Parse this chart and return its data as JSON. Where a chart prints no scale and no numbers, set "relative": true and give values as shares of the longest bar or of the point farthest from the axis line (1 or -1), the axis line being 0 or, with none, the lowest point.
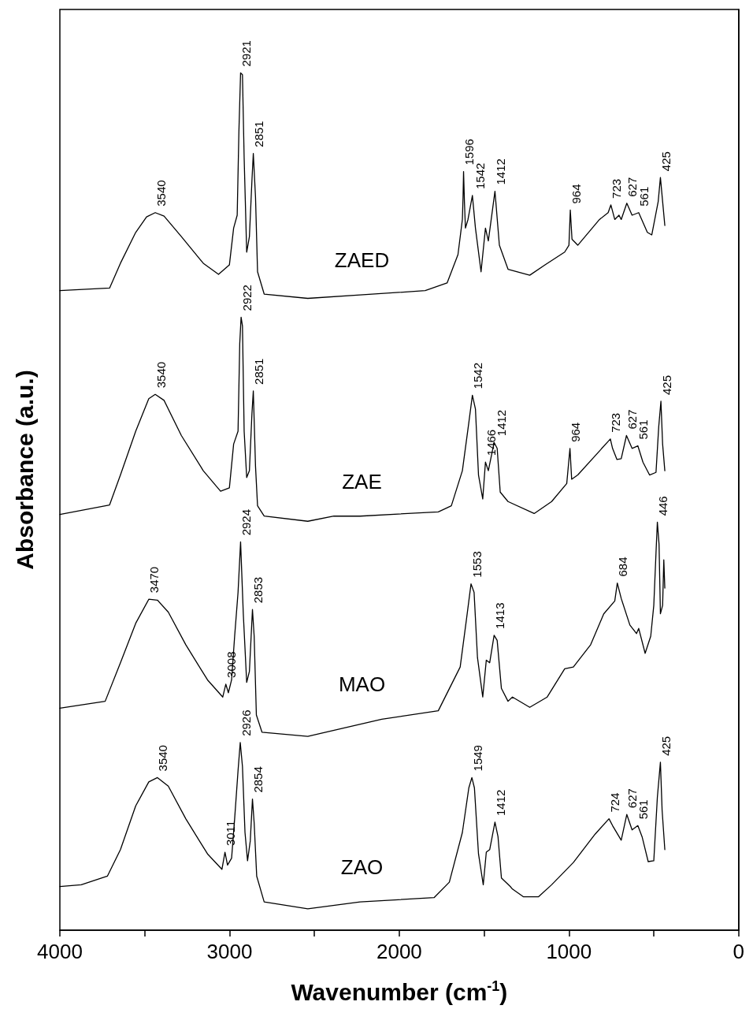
{
  "chart_data": {
    "type": "line",
    "relative": true,
    "xlabel": "Wavenumber (cm$^{-1}$)",
    "ylabel": "Absorbance (a.u.)",
    "xlim": [
      4000,
      0
    ],
    "xticks": [
      4000,
      {
        "value": 3500,
        "label": null
      },
      3000,
      {
        "value": 2500,
        "label": null
      },
      2000,
      {
        "value": 1500,
        "label": null
      },
      1000,
      {
        "value": 500,
        "label": null
      },
      0
    ],
    "tick_labels": "x",
    "legend": false,
    "grid": false,
    "marker": "none",
    "line_style": "solid",
    "series": [
      {
        "name": "ZAED",
        "color": "#000000",
        "x": [
          4000,
          3707,
          3643,
          3553,
          3489,
          3438,
          3386,
          3284,
          3155,
          3065,
          3001,
          2976,
          2955,
          2945,
          2935,
          2924,
          2914,
          2899,
          2883,
          2868,
          2860,
          2847,
          2835,
          2796,
          2539,
          2231,
          1847,
          1718,
          1654,
          1628,
          1624,
          1621,
          1616,
          1610,
          1595,
          1569,
          1551,
          1518,
          1492,
          1475,
          1436,
          1410,
          1359,
          1231,
          1141,
          1025,
          1000,
          992,
          982,
          948,
          820,
          769,
          753,
          730,
          705,
          692,
          659,
          628,
          589,
          538,
          512,
          474,
          461,
          448,
          435
        ],
        "values": [
          0.746,
          0.749,
          0.778,
          0.814,
          0.832,
          0.837,
          0.833,
          0.809,
          0.778,
          0.765,
          0.776,
          0.819,
          0.834,
          0.931,
          1.0,
          0.998,
          0.901,
          0.791,
          0.809,
          0.875,
          0.906,
          0.855,
          0.768,
          0.742,
          0.737,
          0.741,
          0.746,
          0.755,
          0.788,
          0.829,
          0.855,
          0.885,
          0.85,
          0.819,
          0.829,
          0.857,
          0.819,
          0.768,
          0.819,
          0.804,
          0.862,
          0.799,
          0.771,
          0.764,
          0.776,
          0.791,
          0.799,
          0.84,
          0.806,
          0.799,
          0.829,
          0.837,
          0.846,
          0.829,
          0.834,
          0.829,
          0.848,
          0.834,
          0.837,
          0.814,
          0.811,
          0.85,
          0.878,
          0.85,
          0.822
        ]
      },
      {
        "name": "ZAE",
        "color": "#000000",
        "x": [
          4000,
          3707,
          3643,
          3553,
          3476,
          3438,
          3386,
          3284,
          3155,
          3053,
          3001,
          2976,
          2950,
          2940,
          2932,
          2924,
          2914,
          2899,
          2883,
          2868,
          2860,
          2847,
          2835,
          2796,
          2539,
          2385,
          2231,
          1770,
          1693,
          1628,
          1590,
          1569,
          1551,
          1533,
          1508,
          1492,
          1475,
          1441,
          1423,
          1405,
          1359,
          1205,
          1102,
          1013,
          994,
          984,
          948,
          820,
          756,
          743,
          717,
          692,
          661,
          628,
          594,
          564,
          525,
          487,
          471,
          458,
          448,
          435
        ],
        "values": [
          0.485,
          0.496,
          0.531,
          0.582,
          0.62,
          0.625,
          0.618,
          0.577,
          0.536,
          0.512,
          0.516,
          0.567,
          0.582,
          0.684,
          0.715,
          0.705,
          0.582,
          0.528,
          0.536,
          0.603,
          0.629,
          0.541,
          0.495,
          0.483,
          0.477,
          0.483,
          0.483,
          0.488,
          0.495,
          0.536,
          0.592,
          0.624,
          0.608,
          0.531,
          0.503,
          0.546,
          0.536,
          0.569,
          0.562,
          0.511,
          0.5,
          0.486,
          0.5,
          0.521,
          0.562,
          0.526,
          0.531,
          0.559,
          0.573,
          0.562,
          0.549,
          0.55,
          0.577,
          0.562,
          0.565,
          0.546,
          0.531,
          0.534,
          0.587,
          0.617,
          0.567,
          0.536
        ]
      },
      {
        "name": "MAO",
        "color": "#000000",
        "x": [
          4000,
          3733,
          3643,
          3553,
          3476,
          3425,
          3361,
          3258,
          3130,
          3040,
          3022,
          3007,
          2988,
          2970,
          2950,
          2935,
          2919,
          2899,
          2883,
          2865,
          2855,
          2842,
          2809,
          2539,
          2103,
          1770,
          1641,
          1603,
          1577,
          1559,
          1539,
          1508,
          1487,
          1467,
          1441,
          1423,
          1398,
          1359,
          1333,
          1231,
          1128,
          1025,
          974,
          872,
          795,
          730,
          715,
          692,
          641,
          602,
          589,
          551,
          518,
          500,
          487,
          479,
          469,
          461,
          448,
          441,
          435
        ],
        "values": [
          0.259,
          0.267,
          0.312,
          0.358,
          0.386,
          0.385,
          0.371,
          0.333,
          0.292,
          0.272,
          0.287,
          0.277,
          0.292,
          0.343,
          0.394,
          0.453,
          0.369,
          0.289,
          0.302,
          0.374,
          0.343,
          0.251,
          0.231,
          0.226,
          0.246,
          0.256,
          0.307,
          0.364,
          0.404,
          0.394,
          0.318,
          0.272,
          0.315,
          0.312,
          0.344,
          0.338,
          0.282,
          0.267,
          0.272,
          0.26,
          0.272,
          0.305,
          0.307,
          0.333,
          0.369,
          0.384,
          0.405,
          0.387,
          0.356,
          0.346,
          0.352,
          0.323,
          0.343,
          0.379,
          0.44,
          0.476,
          0.45,
          0.369,
          0.379,
          0.432,
          0.399
        ]
      },
      {
        "name": "ZAO",
        "color": "#000000",
        "x": [
          4000,
          3874,
          3720,
          3643,
          3553,
          3476,
          3425,
          3361,
          3258,
          3130,
          3045,
          3027,
          3012,
          2988,
          2970,
          2950,
          2937,
          2924,
          2909,
          2894,
          2878,
          2865,
          2855,
          2840,
          2796,
          2539,
          2231,
          1795,
          1705,
          1628,
          1590,
          1572,
          1557,
          1533,
          1505,
          1487,
          1467,
          1436,
          1418,
          1398,
          1346,
          1333,
          1269,
          1179,
          1102,
          974,
          846,
          764,
          743,
          692,
          659,
          628,
          594,
          569,
          533,
          500,
          479,
          461,
          451,
          435
        ],
        "values": [
          0.051,
          0.053,
          0.063,
          0.094,
          0.145,
          0.173,
          0.178,
          0.168,
          0.13,
          0.089,
          0.071,
          0.091,
          0.076,
          0.084,
          0.13,
          0.186,
          0.219,
          0.191,
          0.114,
          0.081,
          0.104,
          0.153,
          0.125,
          0.063,
          0.033,
          0.025,
          0.033,
          0.038,
          0.056,
          0.114,
          0.166,
          0.178,
          0.166,
          0.089,
          0.053,
          0.091,
          0.094,
          0.126,
          0.109,
          0.061,
          0.051,
          0.048,
          0.039,
          0.039,
          0.053,
          0.079,
          0.112,
          0.13,
          0.122,
          0.105,
          0.135,
          0.117,
          0.122,
          0.109,
          0.08,
          0.081,
          0.155,
          0.196,
          0.14,
          0.094
        ]
      }
    ],
    "annotations": [
      {
        "text": "3540",
        "x": 3438,
        "y": 0.837
      },
      {
        "text": "2921",
        "x": 2935,
        "y": 1.0
      },
      {
        "text": "2851",
        "x": 2860,
        "y": 0.906
      },
      {
        "text": "1596",
        "x": 1621,
        "y": 0.885
      },
      {
        "text": "1542",
        "x": 1569,
        "y": 0.857
      },
      {
        "text": "1412",
        "x": 1436,
        "y": 0.862
      },
      {
        "text": "964",
        "x": 992,
        "y": 0.84
      },
      {
        "text": "723",
        "x": 753,
        "y": 0.846
      },
      {
        "text": "627",
        "x": 659,
        "y": 0.848
      },
      {
        "text": "561",
        "x": 589,
        "y": 0.837
      },
      {
        "text": "425",
        "x": 461,
        "y": 0.878
      },
      {
        "text": "3540",
        "x": 3438,
        "y": 0.625
      },
      {
        "text": "2922",
        "x": 2932,
        "y": 0.715
      },
      {
        "text": "2851",
        "x": 2860,
        "y": 0.629
      },
      {
        "text": "1542",
        "x": 1569,
        "y": 0.624
      },
      {
        "text": "1466",
        "x": 1492,
        "y": 0.546
      },
      {
        "text": "1412",
        "x": 1441,
        "y": 0.569
      },
      {
        "text": "964",
        "x": 994,
        "y": 0.562
      },
      {
        "text": "723",
        "x": 756,
        "y": 0.573
      },
      {
        "text": "627",
        "x": 661,
        "y": 0.577
      },
      {
        "text": "561",
        "x": 594,
        "y": 0.565
      },
      {
        "text": "425",
        "x": 458,
        "y": 0.617
      },
      {
        "text": "3470",
        "x": 3476,
        "y": 0.386
      },
      {
        "text": "3008",
        "x": 3022,
        "y": 0.287
      },
      {
        "text": "2924",
        "x": 2935,
        "y": 0.453
      },
      {
        "text": "2853",
        "x": 2865,
        "y": 0.374
      },
      {
        "text": "1553",
        "x": 1577,
        "y": 0.404
      },
      {
        "text": "1413",
        "x": 1441,
        "y": 0.344
      },
      {
        "text": "684",
        "x": 715,
        "y": 0.405
      },
      {
        "text": "446",
        "x": 479,
        "y": 0.476
      },
      {
        "text": "3540",
        "x": 3425,
        "y": 0.178
      },
      {
        "text": "3011",
        "x": 3027,
        "y": 0.091
      },
      {
        "text": "2926",
        "x": 2937,
        "y": 0.219
      },
      {
        "text": "2854",
        "x": 2865,
        "y": 0.153
      },
      {
        "text": "1549",
        "x": 1572,
        "y": 0.178
      },
      {
        "text": "1412",
        "x": 1436,
        "y": 0.126
      },
      {
        "text": "724",
        "x": 764,
        "y": 0.13
      },
      {
        "text": "627",
        "x": 659,
        "y": 0.135
      },
      {
        "text": "561",
        "x": 594,
        "y": 0.122
      },
      {
        "text": "425",
        "x": 461,
        "y": 0.196
      }
    ]
  }
}
